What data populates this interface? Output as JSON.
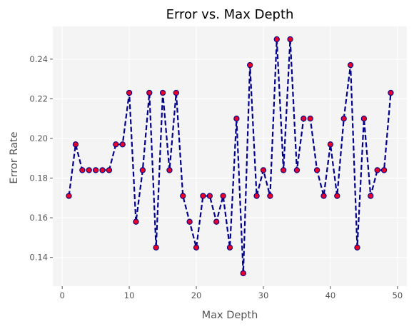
{
  "chart_data": {
    "type": "line",
    "title": "Error vs. Max Depth",
    "xlabel": "Max Depth",
    "ylabel": "Error Rate",
    "xlim": [
      -1.4,
      51.4
    ],
    "ylim": [
      0.1255,
      0.2565
    ],
    "xticks": [
      0,
      10,
      20,
      30,
      40,
      50
    ],
    "yticks": [
      0.14,
      0.16,
      0.18,
      0.2,
      0.22,
      0.24
    ],
    "ytick_labels": [
      "0.14",
      "0.16",
      "0.18",
      "0.20",
      "0.22",
      "0.24"
    ],
    "grid": true,
    "legend": "none",
    "colors": {
      "line": "#00008b",
      "marker_fill": "#e8002a",
      "marker_edge": "#00008b",
      "plot_background": "#f4f4f4",
      "grid": "#ffffff"
    },
    "line_style": "dashed",
    "x": [
      1,
      2,
      3,
      4,
      5,
      6,
      7,
      8,
      9,
      10,
      11,
      12,
      13,
      14,
      15,
      16,
      17,
      18,
      19,
      20,
      21,
      22,
      23,
      24,
      25,
      26,
      27,
      28,
      29,
      30,
      31,
      32,
      33,
      34,
      35,
      36,
      37,
      38,
      39,
      40,
      41,
      42,
      43,
      44,
      45,
      46,
      47,
      48,
      49
    ],
    "series": [
      {
        "values": [
          0.171,
          0.197,
          0.184,
          0.184,
          0.184,
          0.184,
          0.184,
          0.197,
          0.197,
          0.223,
          0.158,
          0.184,
          0.223,
          0.145,
          0.223,
          0.184,
          0.223,
          0.171,
          0.158,
          0.145,
          0.171,
          0.171,
          0.158,
          0.171,
          0.145,
          0.21,
          0.132,
          0.237,
          0.171,
          0.184,
          0.171,
          0.25,
          0.184,
          0.25,
          0.184,
          0.21,
          0.21,
          0.184,
          0.171,
          0.197,
          0.171,
          0.21,
          0.237,
          0.145,
          0.21,
          0.171,
          0.184,
          0.184,
          0.223
        ]
      }
    ]
  }
}
